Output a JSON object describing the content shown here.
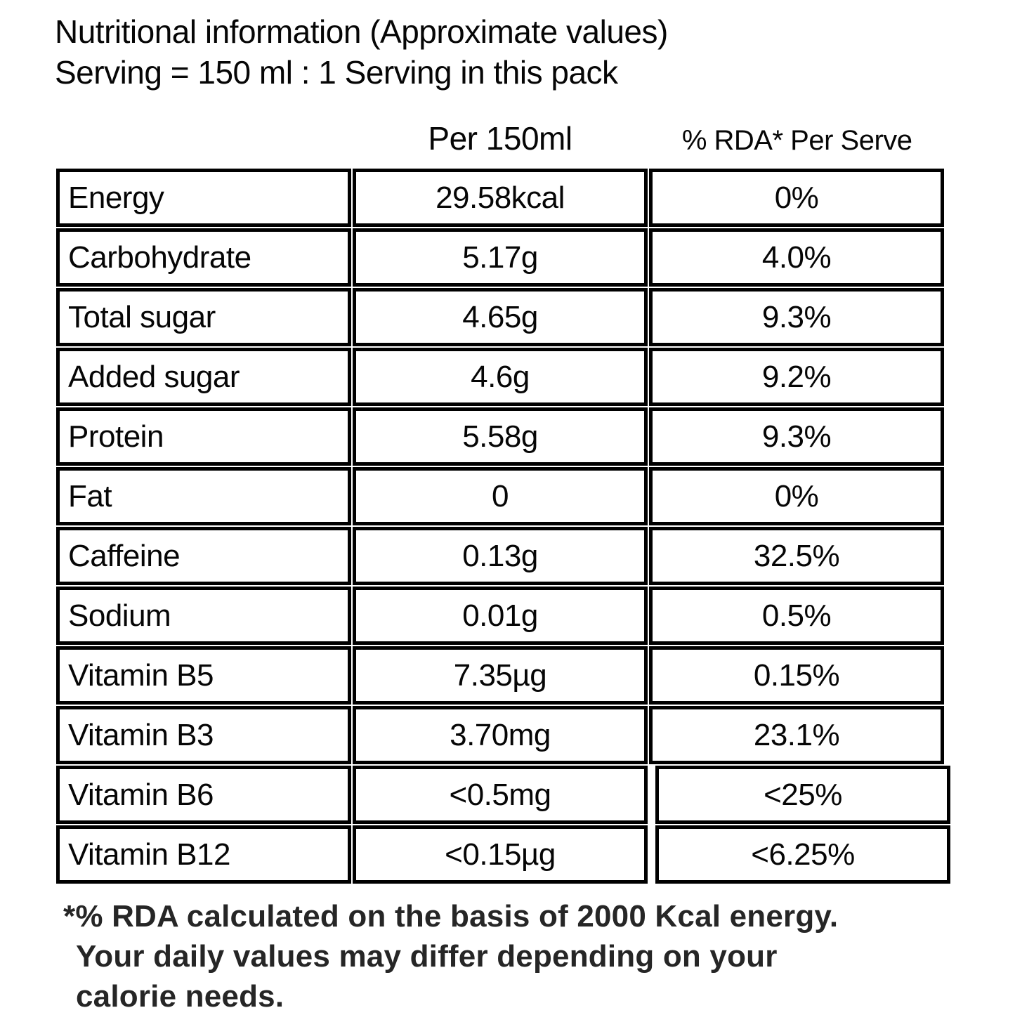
{
  "title": {
    "line1": "Nutritional information (Approximate values)",
    "line2": "Serving = 150 ml : 1 Serving in this pack"
  },
  "column_headers": {
    "per_serving": "Per 150ml",
    "rda": "% RDA* Per Serve"
  },
  "table": {
    "rows": [
      {
        "nutrient": "Energy",
        "amount": "29.58kcal",
        "rda": "0%"
      },
      {
        "nutrient": "Carbohydrate",
        "amount": "5.17g",
        "rda": "4.0%"
      },
      {
        "nutrient": "Total sugar",
        "amount": "4.65g",
        "rda": "9.3%"
      },
      {
        "nutrient": "Added sugar",
        "amount": "4.6g",
        "rda": "9.2%"
      },
      {
        "nutrient": "Protein",
        "amount": "5.58g",
        "rda": "9.3%"
      },
      {
        "nutrient": "Fat",
        "amount": "0",
        "rda": "0%"
      },
      {
        "nutrient": "Caffeine",
        "amount": "0.13g",
        "rda": "32.5%"
      },
      {
        "nutrient": "Sodium",
        "amount": "0.01g",
        "rda": "0.5%"
      },
      {
        "nutrient": "Vitamin B5",
        "amount": "7.35µg",
        "rda": "0.15%"
      },
      {
        "nutrient": "Vitamin B3",
        "amount": "3.70mg",
        "rda": "23.1%"
      },
      {
        "nutrient": "Vitamin B6",
        "amount": "<0.5mg",
        "rda": "<25%"
      },
      {
        "nutrient": "Vitamin B12",
        "amount": "<0.15µg",
        "rda": "<6.25%"
      }
    ]
  },
  "footnote": {
    "lines": [
      "*% RDA calculated on the basis of 2000 Kcal energy.",
      "Your daily values may differ depending on your",
      "calorie needs."
    ]
  },
  "colors": {
    "background": "#ffffff",
    "table_text": "#060606",
    "table_border": "#000000",
    "footnote_text": "#262626"
  }
}
